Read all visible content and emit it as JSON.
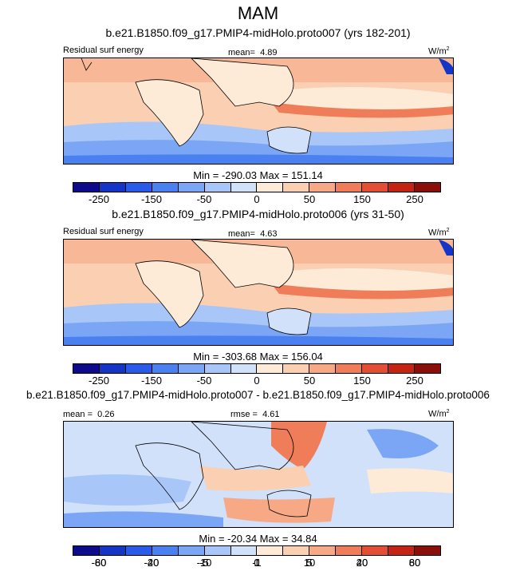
{
  "figure_title": "MAM",
  "units_prefix": "W/m",
  "units_exp": "2",
  "panels": [
    {
      "title": "b.e21.B1850.f09_g17.PMIP4-midHolo.proto007 (yrs 182-201)",
      "left_label": "Residual surf energy",
      "mean_label": "mean=",
      "mean_value": "4.89",
      "minmax": "Min = -290.03 Max = 151.14"
    },
    {
      "title": "b.e21.B1850.f09_g17.PMIP4-midHolo.proto006 (yrs 31-50)",
      "left_label": "Residual surf energy",
      "mean_label": "mean=",
      "mean_value": "4.63",
      "minmax": "Min = -303.68 Max = 156.04"
    },
    {
      "title": "b.e21.B1850.f09_g17.PMIP4-midHolo.proto007 - b.e21.B1850.f09_g17.PMIP4-midHolo.proto006",
      "mean_label": "mean =",
      "mean_value": "0.26",
      "rmse_label": "rmse =",
      "rmse_value": "4.61",
      "minmax": "Min = -20.34 Max = 34.84"
    }
  ],
  "colorbar_main": {
    "colors": [
      "#0d0a8c",
      "#1535c6",
      "#2a5ae8",
      "#4a80f0",
      "#7aa6f5",
      "#a8c6f7",
      "#d2e1fa",
      "#fdebd8",
      "#fbcfb1",
      "#f7a985",
      "#f07d59",
      "#e34f34",
      "#c42414",
      "#8a0f0a"
    ],
    "ticks": [
      "-250",
      "-150",
      "-50",
      "0",
      "50",
      "150",
      "250"
    ]
  },
  "colorbar_diff": {
    "colors": [
      "#0d0a8c",
      "#1535c6",
      "#2a5ae8",
      "#4a80f0",
      "#7aa6f5",
      "#a8c6f7",
      "#d2e1fa",
      "#fdebd8",
      "#fbcfb1",
      "#f7a985",
      "#f07d59",
      "#e34f34",
      "#c42414",
      "#8a0f0a"
    ],
    "ticks": [
      "-80",
      "-60",
      "-40",
      "-20",
      "-10",
      "-5",
      "-1",
      "0",
      "1",
      "5",
      "10",
      "20",
      "40",
      "60",
      "80"
    ]
  }
}
